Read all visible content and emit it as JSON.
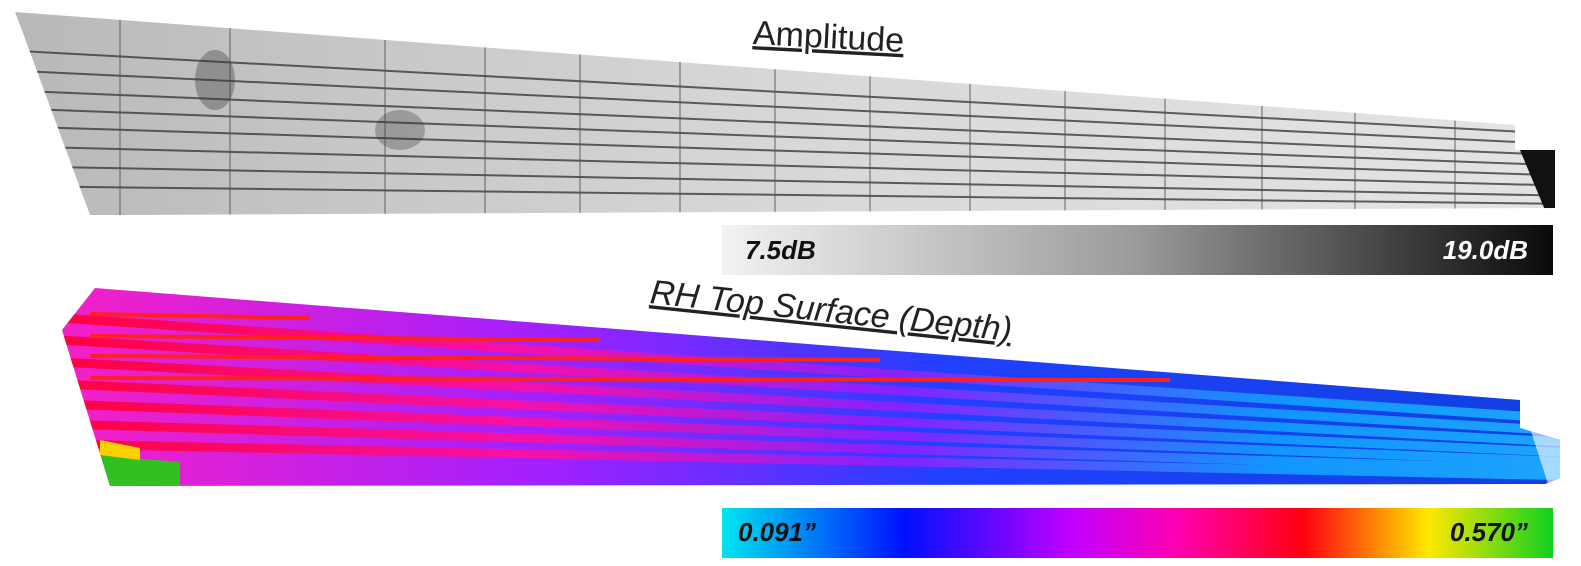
{
  "panels": [
    {
      "title": "Amplitude",
      "scale": {
        "min_label": "7.5dB",
        "max_label": "19.0dB"
      }
    },
    {
      "title": "RH Top Surface (Depth)",
      "scale": {
        "min_label": "0.091”",
        "max_label": "0.570”"
      }
    }
  ]
}
